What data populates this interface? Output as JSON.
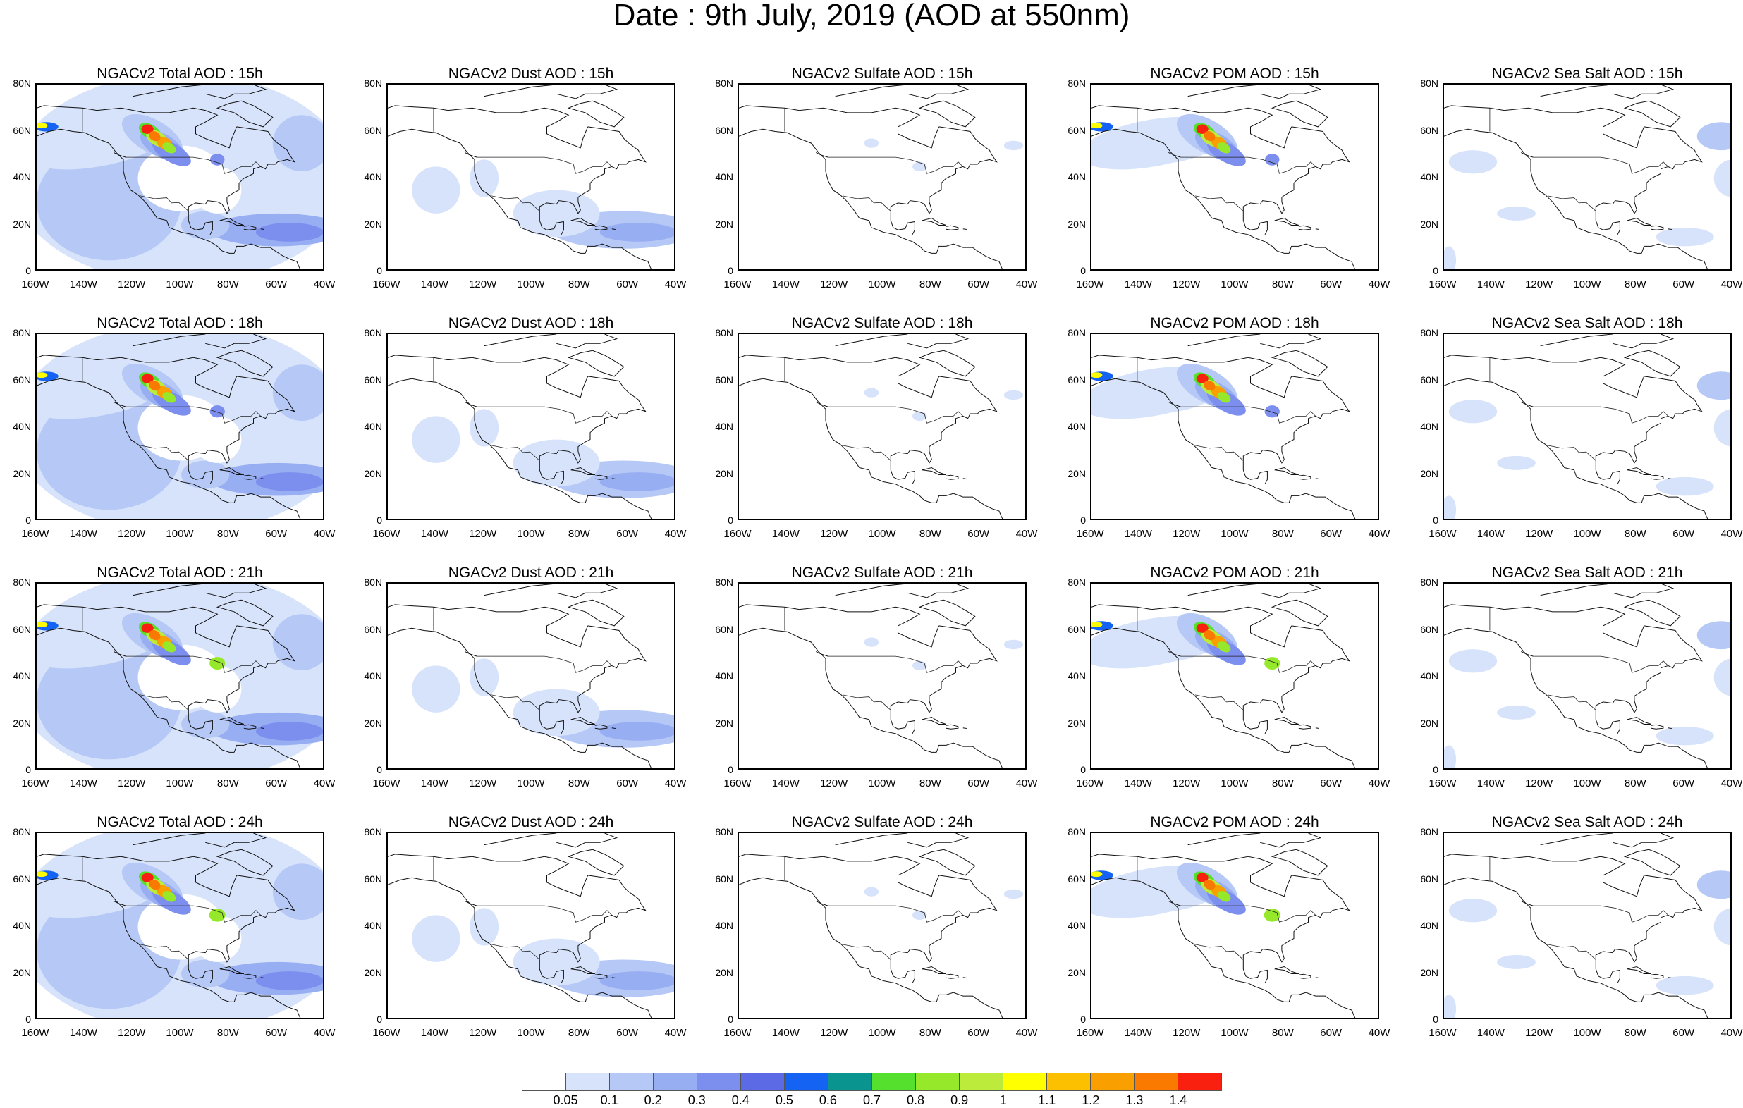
{
  "title": "Date : 9th July, 2019 (AOD at 550nm)",
  "hours": [
    "15h",
    "18h",
    "21h",
    "24h"
  ],
  "species": [
    {
      "key": "total",
      "prefix": "NGACv2 Total AOD"
    },
    {
      "key": "dust",
      "prefix": "NGACv2 Dust AOD"
    },
    {
      "key": "sulfate",
      "prefix": "NGACv2 Sulfate AOD"
    },
    {
      "key": "pom",
      "prefix": "NGACv2 POM AOD"
    },
    {
      "key": "seasalt",
      "prefix": "NGACv2 Sea Salt AOD"
    }
  ],
  "panel_titles": [
    [
      "NGACv2 Total AOD : 15h",
      "NGACv2 Dust AOD : 15h",
      "NGACv2 Sulfate AOD : 15h",
      "NGACv2 POM AOD : 15h",
      "NGACv2 Sea Salt AOD : 15h"
    ],
    [
      "NGACv2 Total AOD : 18h",
      "NGACv2 Dust AOD : 18h",
      "NGACv2 Sulfate AOD : 18h",
      "NGACv2 POM AOD : 18h",
      "NGACv2 Sea Salt AOD : 18h"
    ],
    [
      "NGACv2 Total AOD : 21h",
      "NGACv2 Dust AOD : 21h",
      "NGACv2 Sulfate AOD : 21h",
      "NGACv2 POM AOD : 21h",
      "NGACv2 Sea Salt AOD : 21h"
    ],
    [
      "NGACv2 Total AOD : 24h",
      "NGACv2 Dust AOD : 24h",
      "NGACv2 Sulfate AOD : 24h",
      "NGACv2 POM AOD : 24h",
      "NGACv2 Sea Salt  AOD : 24h"
    ]
  ],
  "lat_ticks": [
    "80N",
    "60N",
    "40N",
    "20N",
    "0"
  ],
  "lon_ticks": [
    "160W",
    "140W",
    "120W",
    "100W",
    "80W",
    "60W",
    "40W"
  ],
  "colorbar": {
    "colors": [
      "#ffffff",
      "#d7e3fb",
      "#b6c8f6",
      "#98aef2",
      "#7c8eee",
      "#5d6ae6",
      "#1563f2",
      "#0a9490",
      "#55e02d",
      "#96e82a",
      "#bdeb3c",
      "#ffff00",
      "#fcc000",
      "#f9a000",
      "#fa7a00",
      "#fa2010"
    ],
    "labels": [
      "0.05",
      "0.1",
      "0.2",
      "0.3",
      "0.4",
      "0.5",
      "0.6",
      "0.7",
      "0.8",
      "0.9",
      "1",
      "1.1",
      "1.2",
      "1.3",
      "1.4"
    ]
  }
}
